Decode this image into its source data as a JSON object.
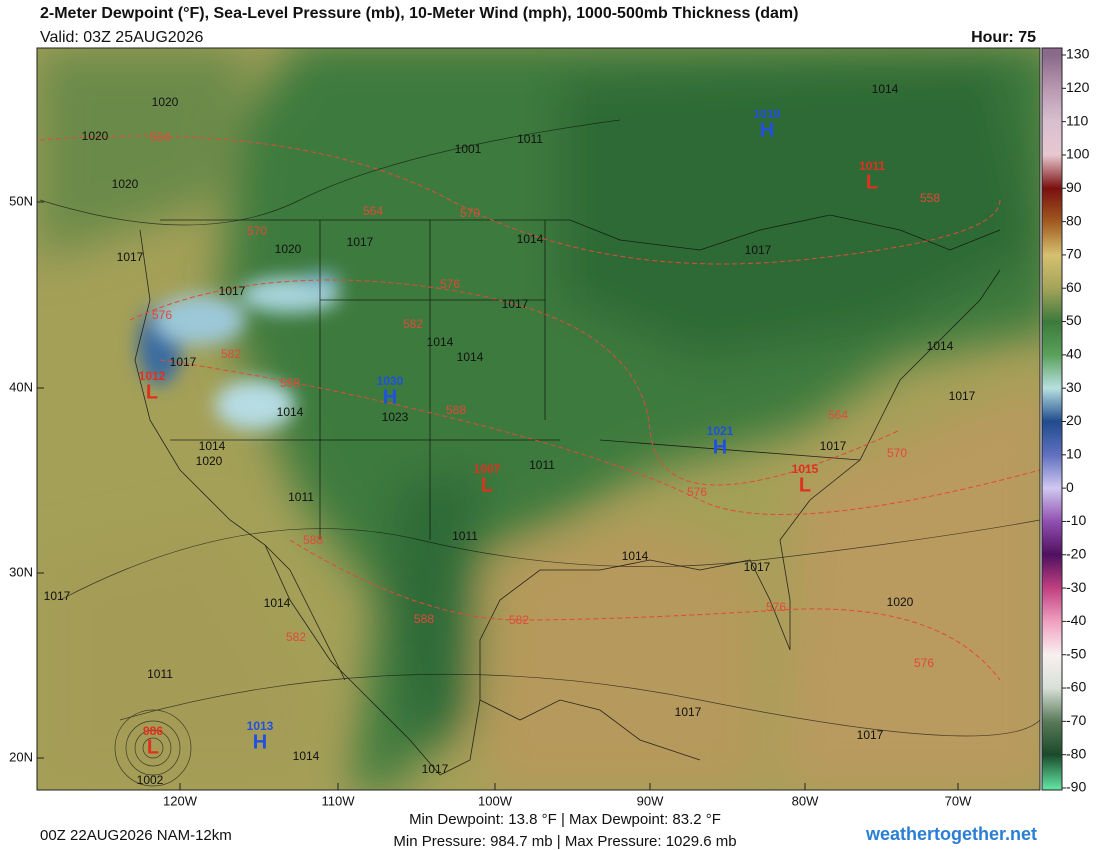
{
  "header": {
    "title": "2-Meter Dewpoint (°F), Sea-Level Pressure (mb), 10-Meter Wind (mph), 1000-500mb Thickness (dam)",
    "valid": "Valid: 03Z 25AUG2026",
    "hour": "Hour: 75"
  },
  "colorbar": {
    "ticks": [
      130,
      120,
      110,
      100,
      90,
      80,
      70,
      60,
      50,
      40,
      30,
      20,
      10,
      0,
      -10,
      -20,
      -30,
      -40,
      -50,
      -60,
      -70,
      -80,
      -90
    ],
    "colors": [
      "#8a6a8a",
      "#b898b0",
      "#d8c0d0",
      "#e8c8d0",
      "#7a1010",
      "#a05a20",
      "#d6c070",
      "#a4a45a",
      "#3c7a3c",
      "#5aa05a",
      "#b8e0e0",
      "#204c8c",
      "#6070c0",
      "#d0c8f0",
      "#9050b0",
      "#501060",
      "#c04080",
      "#f0a0c0",
      "#f8f0f0",
      "#d8e0d8",
      "#5a7a5a",
      "#1a4a2a",
      "#60e0a0"
    ]
  },
  "latitudes": [
    "50N",
    "40N",
    "30N",
    "20N"
  ],
  "longitudes": [
    "120W",
    "110W",
    "100W",
    "90W",
    "80W",
    "70W"
  ],
  "centers": [
    {
      "letter": "H",
      "value": 1019
    },
    {
      "letter": "L",
      "value": 1011
    },
    {
      "letter": "L",
      "value": 1012
    },
    {
      "letter": "H",
      "value": 1030
    },
    {
      "letter": "L",
      "value": 1007
    },
    {
      "letter": "H",
      "value": 1021
    },
    {
      "letter": "L",
      "value": 1015
    },
    {
      "letter": "H",
      "value": 1013
    },
    {
      "letter": "L",
      "value": 986
    }
  ],
  "isobar_labels": [
    1020,
    1020,
    1020,
    1017,
    1014,
    1001,
    1011,
    1014,
    1017,
    1017,
    1020,
    1017,
    1017,
    1014,
    1014,
    1020,
    1011,
    1014,
    1014,
    1011,
    1011,
    1014,
    1017,
    1017,
    1014,
    1017,
    1017,
    1014,
    1011,
    1017,
    1017,
    1020,
    1014,
    1002,
    1017,
    1023,
    1017
  ],
  "thickness_labels": [
    564,
    564,
    570,
    576,
    582,
    576,
    582,
    588,
    588,
    564,
    570,
    576,
    576,
    576,
    588,
    582,
    588,
    582,
    558,
    570
  ],
  "footer": {
    "run": "00Z 22AUG2026 NAM-12km",
    "dewpoint": "Min Dewpoint:  13.8 °F | Max Dewpoint:  83.2 °F",
    "pressure": "Min Pressure: 984.7 mb | Max Pressure: 1029.6 mb",
    "site": "weathertogether.net"
  }
}
